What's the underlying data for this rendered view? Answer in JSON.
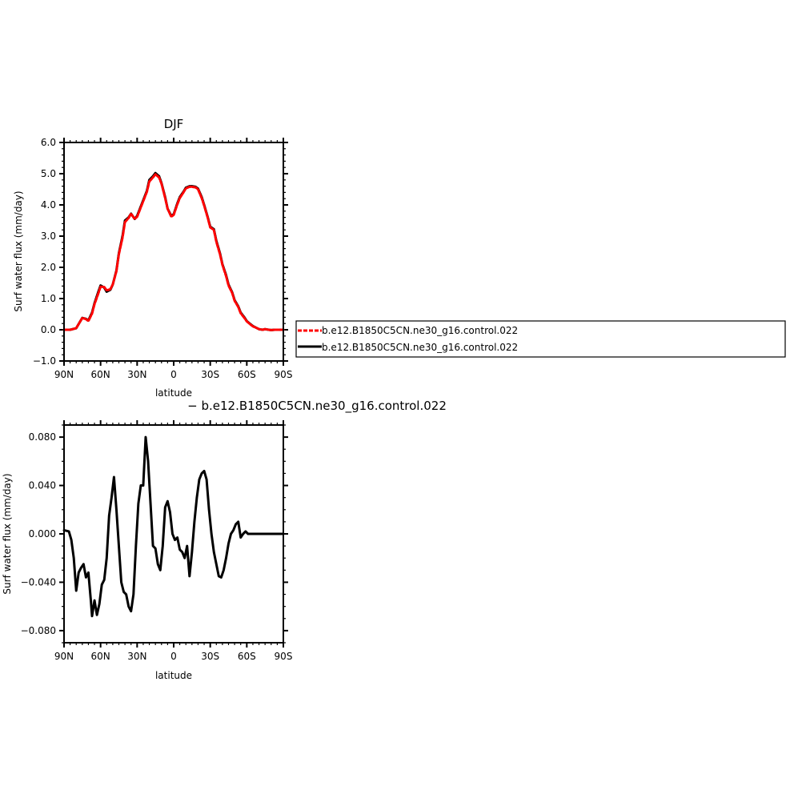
{
  "chart_data": [
    {
      "type": "line",
      "title": "DJF",
      "xlabel": "latitude",
      "ylabel": "Surf water flux (mm/day)",
      "xlim": [
        -90,
        90
      ],
      "ylim": [
        -1.0,
        6.0
      ],
      "x_ticks": [
        -90,
        -60,
        -30,
        0,
        30,
        60,
        90
      ],
      "x_tick_labels": [
        "90N",
        "60N",
        "30N",
        "0",
        "30S",
        "60S",
        "90S"
      ],
      "y_ticks": [
        -1.0,
        0.0,
        1.0,
        2.0,
        3.0,
        4.0,
        5.0,
        6.0
      ],
      "y_tick_labels": [
        "−1.0",
        "0.0",
        "1.0",
        "2.0",
        "3.0",
        "4.0",
        "5.0",
        "6.0"
      ],
      "series": [
        {
          "name": "b.e12.B1850C5CN.ne30_g16.control.022",
          "color": "#000000",
          "dash": "solid",
          "x": [
            -90,
            -85,
            -80,
            -77,
            -75,
            -72,
            -70,
            -67,
            -65,
            -62,
            -60,
            -57,
            -55,
            -52,
            -50,
            -47,
            -45,
            -42,
            -40,
            -37,
            -35,
            -32,
            -30,
            -27,
            -25,
            -22,
            -20,
            -17,
            -15,
            -12,
            -10,
            -7,
            -5,
            -2,
            0,
            3,
            5,
            8,
            10,
            13,
            15,
            18,
            20,
            23,
            25,
            28,
            30,
            33,
            35,
            38,
            40,
            43,
            45,
            48,
            50,
            53,
            55,
            58,
            60,
            63,
            65,
            68,
            70,
            73,
            75,
            78,
            80,
            83,
            85,
            88,
            90
          ],
          "y": [
            0.0,
            0.0,
            0.05,
            0.25,
            0.38,
            0.35,
            0.3,
            0.55,
            0.85,
            1.2,
            1.42,
            1.35,
            1.22,
            1.28,
            1.45,
            1.9,
            2.45,
            3.0,
            3.5,
            3.6,
            3.72,
            3.55,
            3.65,
            3.95,
            4.15,
            4.45,
            4.8,
            4.92,
            5.02,
            4.92,
            4.7,
            4.25,
            3.88,
            3.65,
            3.7,
            4.05,
            4.25,
            4.42,
            4.55,
            4.6,
            4.6,
            4.58,
            4.52,
            4.25,
            4.0,
            3.6,
            3.3,
            3.22,
            2.85,
            2.45,
            2.1,
            1.75,
            1.45,
            1.2,
            0.95,
            0.75,
            0.55,
            0.4,
            0.28,
            0.18,
            0.12,
            0.06,
            0.02,
            0.0,
            0.02,
            0.0,
            -0.01,
            0.0,
            0.0,
            0.0,
            0.0
          ]
        },
        {
          "name": "b.e12.B1850C5CN.ne30_g16.control.022",
          "color": "#ff0000",
          "dash": "dashed",
          "x": [
            -90,
            -85,
            -80,
            -77,
            -75,
            -72,
            -70,
            -67,
            -65,
            -62,
            -60,
            -57,
            -55,
            -52,
            -50,
            -47,
            -45,
            -42,
            -40,
            -37,
            -35,
            -32,
            -30,
            -27,
            -25,
            -22,
            -20,
            -17,
            -15,
            -12,
            -10,
            -7,
            -5,
            -2,
            0,
            3,
            5,
            8,
            10,
            13,
            15,
            18,
            20,
            23,
            25,
            28,
            30,
            33,
            35,
            38,
            40,
            43,
            45,
            48,
            50,
            53,
            55,
            58,
            60,
            63,
            65,
            68,
            70,
            73,
            75,
            78,
            80,
            83,
            85,
            88,
            90
          ],
          "y": [
            0.0,
            0.0,
            0.05,
            0.25,
            0.38,
            0.34,
            0.28,
            0.52,
            0.82,
            1.15,
            1.38,
            1.37,
            1.26,
            1.3,
            1.45,
            1.88,
            2.42,
            2.95,
            3.45,
            3.58,
            3.72,
            3.55,
            3.62,
            3.92,
            4.12,
            4.42,
            4.75,
            4.88,
            4.98,
            4.88,
            4.68,
            4.22,
            3.88,
            3.62,
            3.68,
            4.02,
            4.22,
            4.4,
            4.53,
            4.58,
            4.58,
            4.56,
            4.5,
            4.22,
            3.98,
            3.58,
            3.28,
            3.2,
            2.82,
            2.42,
            2.08,
            1.72,
            1.42,
            1.18,
            0.93,
            0.73,
            0.53,
            0.38,
            0.27,
            0.17,
            0.11,
            0.06,
            0.02,
            0.0,
            0.02,
            0.0,
            -0.01,
            0.0,
            0.0,
            0.0,
            0.0
          ]
        }
      ],
      "legend": {
        "placement": "right",
        "entries": [
          {
            "label": "b.e12.B1850C5CN.ne30_g16.control.022",
            "color": "#ff0000",
            "dash": "dashed"
          },
          {
            "label": "b.e12.B1850C5CN.ne30_g16.control.022",
            "color": "#000000",
            "dash": "solid"
          }
        ]
      }
    },
    {
      "type": "line",
      "title": "− b.e12.B1850C5CN.ne30_g16.control.022",
      "xlabel": "latitude",
      "ylabel": "Surf water flux (mm/day)",
      "xlim": [
        -90,
        90
      ],
      "ylim": [
        -0.09,
        0.09
      ],
      "x_ticks": [
        -90,
        -60,
        -30,
        0,
        30,
        60,
        90
      ],
      "x_tick_labels": [
        "90N",
        "60N",
        "30N",
        "0",
        "30S",
        "60S",
        "90S"
      ],
      "y_ticks": [
        -0.08,
        -0.04,
        0.0,
        0.04,
        0.08
      ],
      "y_tick_labels": [
        "−0.080",
        "−0.040",
        "0.000",
        "0.040",
        "0.080"
      ],
      "series": [
        {
          "name": "b.e12.B1850C5CN.ne30_g16.control.022",
          "color": "#000000",
          "dash": "solid",
          "x": [
            -90,
            -86,
            -84,
            -82,
            -80,
            -78,
            -76,
            -74,
            -72,
            -70,
            -68,
            -67,
            -65,
            -63,
            -61,
            -59,
            -57,
            -55,
            -53,
            -51,
            -49,
            -47,
            -45,
            -43,
            -41,
            -39,
            -37,
            -35,
            -33,
            -31,
            -29,
            -27,
            -25,
            -23,
            -21,
            -19,
            -17,
            -15,
            -13,
            -11,
            -9,
            -7,
            -5,
            -3,
            -1,
            1,
            3,
            5,
            7,
            9,
            11,
            13,
            15,
            17,
            19,
            21,
            23,
            25,
            27,
            29,
            31,
            33,
            35,
            37,
            39,
            41,
            43,
            45,
            47,
            49,
            51,
            53,
            55,
            57,
            59,
            61,
            63,
            65,
            67,
            69,
            71,
            73,
            75,
            77,
            79,
            81,
            83,
            85,
            87,
            90
          ],
          "y": [
            0.003,
            0.002,
            -0.005,
            -0.02,
            -0.047,
            -0.032,
            -0.028,
            -0.025,
            -0.036,
            -0.032,
            -0.055,
            -0.068,
            -0.055,
            -0.067,
            -0.058,
            -0.042,
            -0.038,
            -0.02,
            0.015,
            0.03,
            0.047,
            0.02,
            -0.01,
            -0.04,
            -0.048,
            -0.05,
            -0.06,
            -0.064,
            -0.05,
            -0.01,
            0.025,
            0.04,
            0.04,
            0.08,
            0.06,
            0.025,
            -0.01,
            -0.012,
            -0.025,
            -0.03,
            -0.01,
            0.022,
            0.027,
            0.018,
            0.0,
            -0.005,
            -0.003,
            -0.013,
            -0.015,
            -0.02,
            -0.01,
            -0.035,
            -0.015,
            0.01,
            0.03,
            0.045,
            0.05,
            0.052,
            0.045,
            0.02,
            0.0,
            -0.015,
            -0.025,
            -0.035,
            -0.036,
            -0.03,
            -0.02,
            -0.008,
            0.0,
            0.003,
            0.008,
            0.01,
            -0.003,
            0.0,
            0.002,
            0.0,
            0.0,
            0.0,
            0.0,
            0.0,
            0.0,
            0.0,
            0.0,
            0.0,
            0.0,
            0.0,
            0.0,
            0.0,
            0.0,
            0.0
          ]
        }
      ]
    }
  ]
}
